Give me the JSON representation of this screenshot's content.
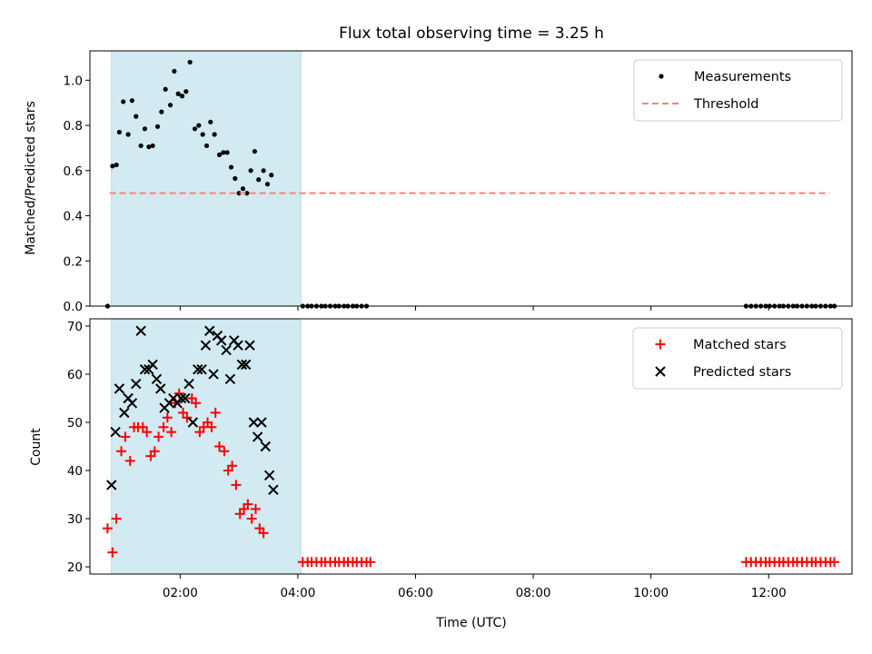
{
  "chart_data": [
    {
      "type": "scatter",
      "title": "Flux total observing time = 3.25 h",
      "xlabel": "",
      "ylabel": "Matched/Predicted stars",
      "xlim": [
        "00:28",
        "13:25"
      ],
      "ylim": [
        0,
        1.13
      ],
      "yticks": [
        "0.0",
        "0.2",
        "0.4",
        "0.6",
        "0.8",
        "1.0"
      ],
      "shaded_region": {
        "x_start": "00:50",
        "x_end": "04:03",
        "color": "#add8e6"
      },
      "legend_position": "upper right",
      "series": [
        {
          "name": "Measurements",
          "marker": "dot",
          "color": "#000000",
          "points": [
            [
              "00:46",
              0.0
            ],
            [
              "00:51",
              0.62
            ],
            [
              "00:55",
              0.625
            ],
            [
              "00:58",
              0.77
            ],
            [
              "01:02",
              0.905
            ],
            [
              "01:07",
              0.76
            ],
            [
              "01:11",
              0.91
            ],
            [
              "01:15",
              0.84
            ],
            [
              "01:20",
              0.71
            ],
            [
              "01:24",
              0.785
            ],
            [
              "01:28",
              0.705
            ],
            [
              "01:32",
              0.71
            ],
            [
              "01:37",
              0.795
            ],
            [
              "01:41",
              0.86
            ],
            [
              "01:45",
              0.96
            ],
            [
              "01:50",
              0.89
            ],
            [
              "01:54",
              1.04
            ],
            [
              "01:58",
              0.94
            ],
            [
              "02:02",
              0.93
            ],
            [
              "02:06",
              0.95
            ],
            [
              "02:10",
              1.08
            ],
            [
              "02:15",
              0.785
            ],
            [
              "02:19",
              0.8
            ],
            [
              "02:23",
              0.76
            ],
            [
              "02:27",
              0.71
            ],
            [
              "02:31",
              0.815
            ],
            [
              "02:35",
              0.76
            ],
            [
              "02:40",
              0.67
            ],
            [
              "02:44",
              0.68
            ],
            [
              "02:48",
              0.68
            ],
            [
              "02:52",
              0.615
            ],
            [
              "02:56",
              0.565
            ],
            [
              "03:00",
              0.5
            ],
            [
              "03:04",
              0.52
            ],
            [
              "03:08",
              0.5
            ],
            [
              "03:12",
              0.6
            ],
            [
              "03:16",
              0.685
            ],
            [
              "03:20",
              0.56
            ],
            [
              "03:25",
              0.6
            ],
            [
              "03:29",
              0.54
            ],
            [
              "03:33",
              0.58
            ],
            [
              "04:05",
              0.0
            ],
            [
              "04:10",
              0.0
            ],
            [
              "04:14",
              0.0
            ],
            [
              "04:19",
              0.0
            ],
            [
              "04:24",
              0.0
            ],
            [
              "04:28",
              0.0
            ],
            [
              "04:33",
              0.0
            ],
            [
              "04:38",
              0.0
            ],
            [
              "04:42",
              0.0
            ],
            [
              "04:47",
              0.0
            ],
            [
              "04:51",
              0.0
            ],
            [
              "04:56",
              0.0
            ],
            [
              "05:00",
              0.0
            ],
            [
              "05:05",
              0.0
            ],
            [
              "05:10",
              0.0
            ],
            [
              "11:37",
              0.0
            ],
            [
              "11:42",
              0.0
            ],
            [
              "11:47",
              0.0
            ],
            [
              "11:52",
              0.0
            ],
            [
              "11:57",
              0.0
            ],
            [
              "12:01",
              0.0
            ],
            [
              "12:06",
              0.0
            ],
            [
              "12:11",
              0.0
            ],
            [
              "12:15",
              0.0
            ],
            [
              "12:20",
              0.0
            ],
            [
              "12:25",
              0.0
            ],
            [
              "12:29",
              0.0
            ],
            [
              "12:34",
              0.0
            ],
            [
              "12:39",
              0.0
            ],
            [
              "12:44",
              0.0
            ],
            [
              "12:48",
              0.0
            ],
            [
              "12:53",
              0.0
            ],
            [
              "12:58",
              0.0
            ],
            [
              "13:03",
              0.0
            ],
            [
              "13:07",
              0.0
            ]
          ]
        },
        {
          "name": "Threshold",
          "line_style": "dashed",
          "color": "#ff7f7f",
          "points": [
            [
              "00:48",
              0.5
            ],
            [
              "13:02",
              0.5
            ]
          ]
        }
      ]
    },
    {
      "type": "scatter",
      "title": "",
      "xlabel": "Time (UTC)",
      "ylabel": "Count",
      "xlim": [
        "00:28",
        "13:25"
      ],
      "ylim": [
        18.5,
        71.5
      ],
      "xticks": [
        "02:00",
        "04:00",
        "06:00",
        "08:00",
        "10:00",
        "12:00"
      ],
      "yticks": [
        "20",
        "30",
        "40",
        "50",
        "60",
        "70"
      ],
      "shaded_region": {
        "x_start": "00:50",
        "x_end": "04:03",
        "color": "#add8e6"
      },
      "legend_position": "upper right",
      "series": [
        {
          "name": "Matched stars",
          "marker": "plus",
          "color": "#ff0000",
          "points": [
            [
              "00:46",
              28
            ],
            [
              "00:51",
              23
            ],
            [
              "00:55",
              30
            ],
            [
              "01:00",
              44
            ],
            [
              "01:04",
              47
            ],
            [
              "01:09",
              42
            ],
            [
              "01:13",
              49
            ],
            [
              "01:17",
              49
            ],
            [
              "01:22",
              49
            ],
            [
              "01:26",
              48
            ],
            [
              "01:30",
              43
            ],
            [
              "01:34",
              44
            ],
            [
              "01:38",
              47
            ],
            [
              "01:43",
              49
            ],
            [
              "01:47",
              51
            ],
            [
              "01:51",
              48
            ],
            [
              "01:55",
              54
            ],
            [
              "01:59",
              56
            ],
            [
              "02:03",
              52
            ],
            [
              "02:07",
              51
            ],
            [
              "02:12",
              55
            ],
            [
              "02:16",
              54
            ],
            [
              "02:20",
              48
            ],
            [
              "02:24",
              49
            ],
            [
              "02:28",
              50
            ],
            [
              "02:32",
              49
            ],
            [
              "02:36",
              52
            ],
            [
              "02:40",
              45
            ],
            [
              "02:45",
              44
            ],
            [
              "02:49",
              40
            ],
            [
              "02:53",
              41
            ],
            [
              "02:57",
              37
            ],
            [
              "03:01",
              31
            ],
            [
              "03:05",
              32
            ],
            [
              "03:09",
              33
            ],
            [
              "03:13",
              30
            ],
            [
              "03:17",
              32
            ],
            [
              "03:21",
              28
            ],
            [
              "03:25",
              27
            ],
            [
              "04:05",
              21
            ],
            [
              "04:10",
              21
            ],
            [
              "04:14",
              21
            ],
            [
              "04:19",
              21
            ],
            [
              "04:24",
              21
            ],
            [
              "04:28",
              21
            ],
            [
              "04:33",
              21
            ],
            [
              "04:38",
              21
            ],
            [
              "04:42",
              21
            ],
            [
              "04:47",
              21
            ],
            [
              "04:51",
              21
            ],
            [
              "04:56",
              21
            ],
            [
              "05:00",
              21
            ],
            [
              "05:05",
              21
            ],
            [
              "05:10",
              21
            ],
            [
              "05:14",
              21
            ],
            [
              "11:37",
              21
            ],
            [
              "11:42",
              21
            ],
            [
              "11:47",
              21
            ],
            [
              "11:52",
              21
            ],
            [
              "11:57",
              21
            ],
            [
              "12:01",
              21
            ],
            [
              "12:06",
              21
            ],
            [
              "12:11",
              21
            ],
            [
              "12:15",
              21
            ],
            [
              "12:20",
              21
            ],
            [
              "12:25",
              21
            ],
            [
              "12:29",
              21
            ],
            [
              "12:34",
              21
            ],
            [
              "12:39",
              21
            ],
            [
              "12:44",
              21
            ],
            [
              "12:48",
              21
            ],
            [
              "12:53",
              21
            ],
            [
              "12:58",
              21
            ],
            [
              "13:03",
              21
            ],
            [
              "13:07",
              21
            ]
          ]
        },
        {
          "name": "Predicted stars",
          "marker": "x",
          "color": "#000000",
          "points": [
            [
              "00:50",
              37
            ],
            [
              "00:54",
              48
            ],
            [
              "00:58",
              57
            ],
            [
              "01:03",
              52
            ],
            [
              "01:07",
              55
            ],
            [
              "01:11",
              54
            ],
            [
              "01:15",
              58
            ],
            [
              "01:20",
              69
            ],
            [
              "01:24",
              61
            ],
            [
              "01:28",
              61
            ],
            [
              "01:32",
              62
            ],
            [
              "01:36",
              59
            ],
            [
              "01:40",
              57
            ],
            [
              "01:44",
              53
            ],
            [
              "01:49",
              54
            ],
            [
              "01:53",
              55
            ],
            [
              "01:57",
              54
            ],
            [
              "02:01",
              55
            ],
            [
              "02:05",
              55
            ],
            [
              "02:09",
              58
            ],
            [
              "02:13",
              50
            ],
            [
              "02:18",
              61
            ],
            [
              "02:22",
              61
            ],
            [
              "02:26",
              66
            ],
            [
              "02:30",
              69
            ],
            [
              "02:34",
              60
            ],
            [
              "02:38",
              68
            ],
            [
              "02:42",
              67
            ],
            [
              "02:47",
              65
            ],
            [
              "02:51",
              59
            ],
            [
              "02:55",
              67
            ],
            [
              "02:59",
              66
            ],
            [
              "03:03",
              62
            ],
            [
              "03:07",
              62
            ],
            [
              "03:11",
              66
            ],
            [
              "03:15",
              50
            ],
            [
              "03:19",
              47
            ],
            [
              "03:23",
              50
            ],
            [
              "03:27",
              45
            ],
            [
              "03:31",
              39
            ],
            [
              "03:35",
              36
            ]
          ]
        }
      ]
    }
  ]
}
